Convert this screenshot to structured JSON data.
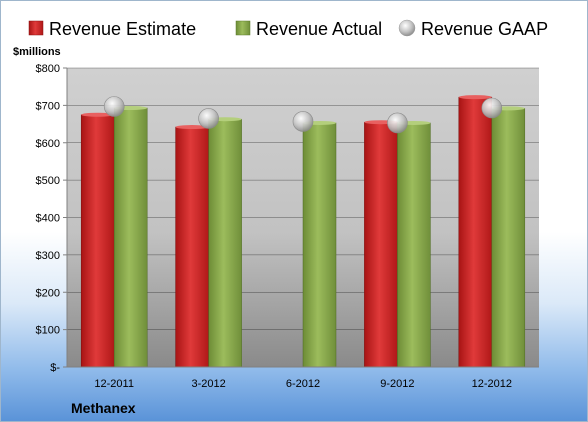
{
  "chart_data": {
    "type": "bar",
    "title": "",
    "ylabel": "$millions",
    "company": "Methanex",
    "categories": [
      "12-2011",
      "3-2012",
      "6-2012",
      "9-2012",
      "12-2012"
    ],
    "ylim": [
      0,
      800
    ],
    "yticks": [
      0,
      100,
      200,
      300,
      400,
      500,
      600,
      700,
      800
    ],
    "ytick_labels": [
      "$-",
      "$100",
      "$200",
      "$300",
      "$400",
      "$500",
      "$600",
      "$700",
      "$800"
    ],
    "legend_position": "top",
    "grid": true,
    "series": [
      {
        "name": "Revenue Estimate",
        "kind": "bar",
        "color": "#d42a2a",
        "values": [
          675,
          642,
          null,
          655,
          722
        ]
      },
      {
        "name": "Revenue Actual",
        "kind": "bar",
        "color": "#8fb04e",
        "values": [
          693,
          663,
          653,
          653,
          692
        ]
      },
      {
        "name": "Revenue GAAP",
        "kind": "marker",
        "color": "#c8c8c8",
        "values": [
          697,
          665,
          657,
          653,
          693
        ]
      }
    ]
  }
}
